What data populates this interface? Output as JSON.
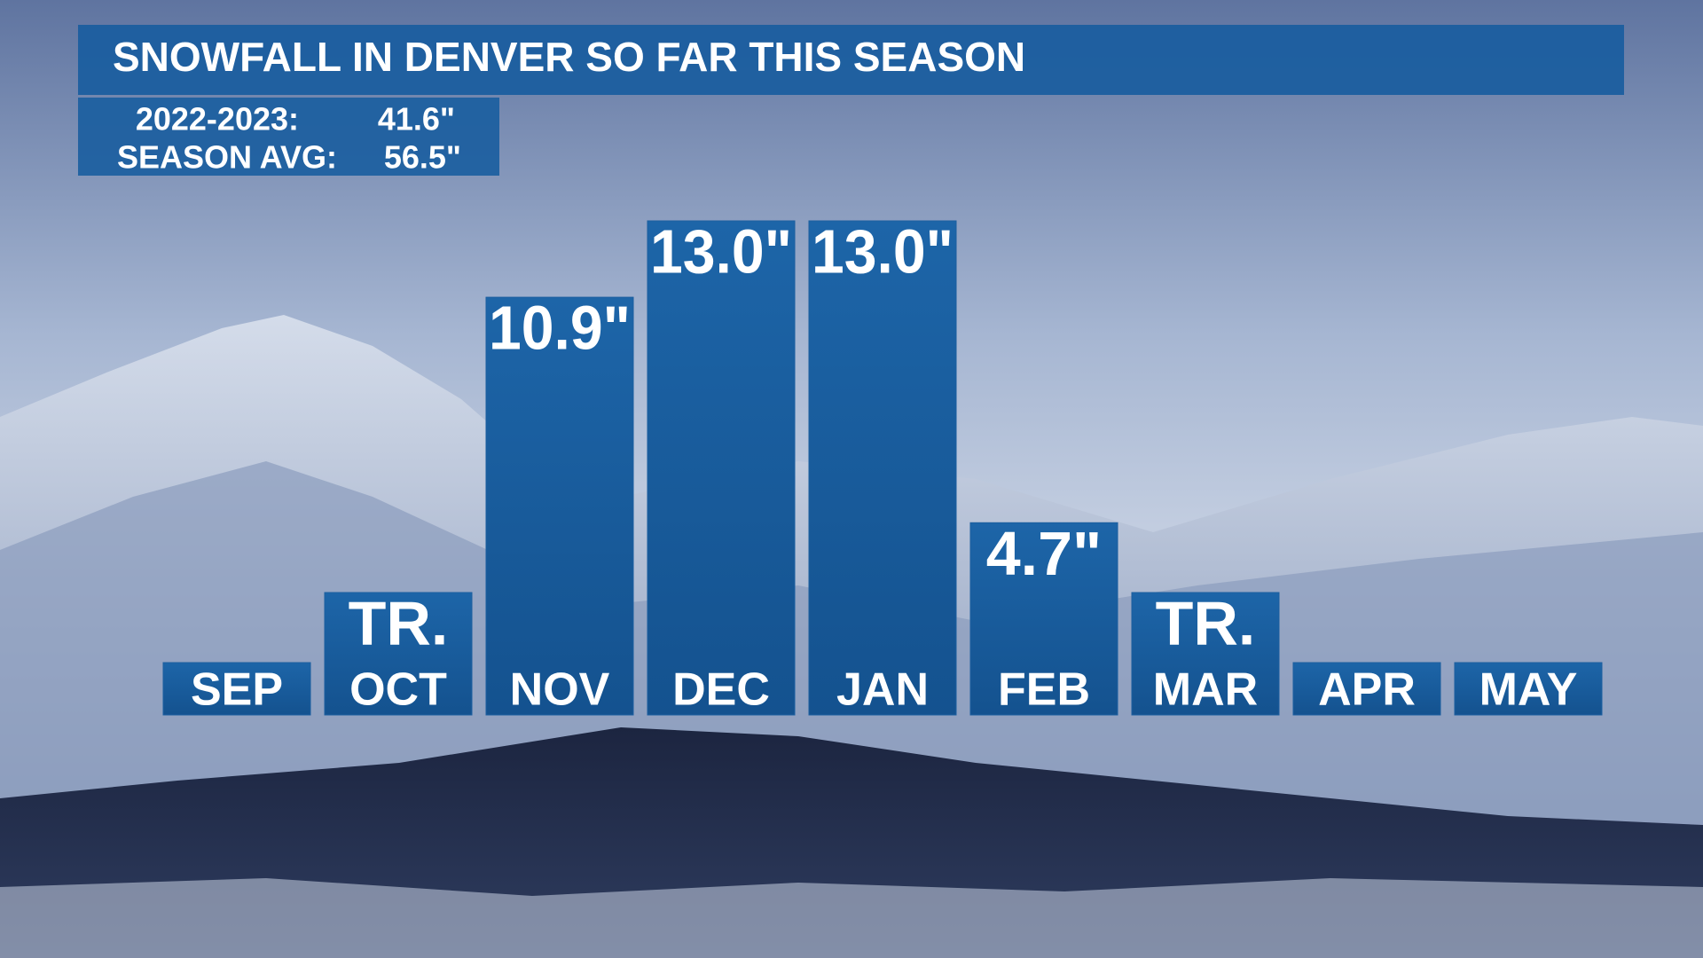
{
  "chart_data": {
    "type": "bar",
    "title": "SNOWFALL IN DENVER SO FAR THIS SEASON",
    "summary": [
      {
        "label": "2022-2023:",
        "value": "41.6\""
      },
      {
        "label": "SEASON AVG:",
        "value": "56.5\""
      }
    ],
    "categories": [
      "SEP",
      "OCT",
      "NOV",
      "DEC",
      "JAN",
      "FEB",
      "MAR",
      "APR",
      "MAY"
    ],
    "values": [
      null,
      0,
      10.9,
      13.0,
      13.0,
      4.7,
      0,
      null,
      null
    ],
    "value_labels": [
      null,
      "TR.",
      "10.9\"",
      "13.0\"",
      "13.0\"",
      "4.7\"",
      "TR.",
      null,
      null
    ],
    "color": "#1b5e9f"
  }
}
